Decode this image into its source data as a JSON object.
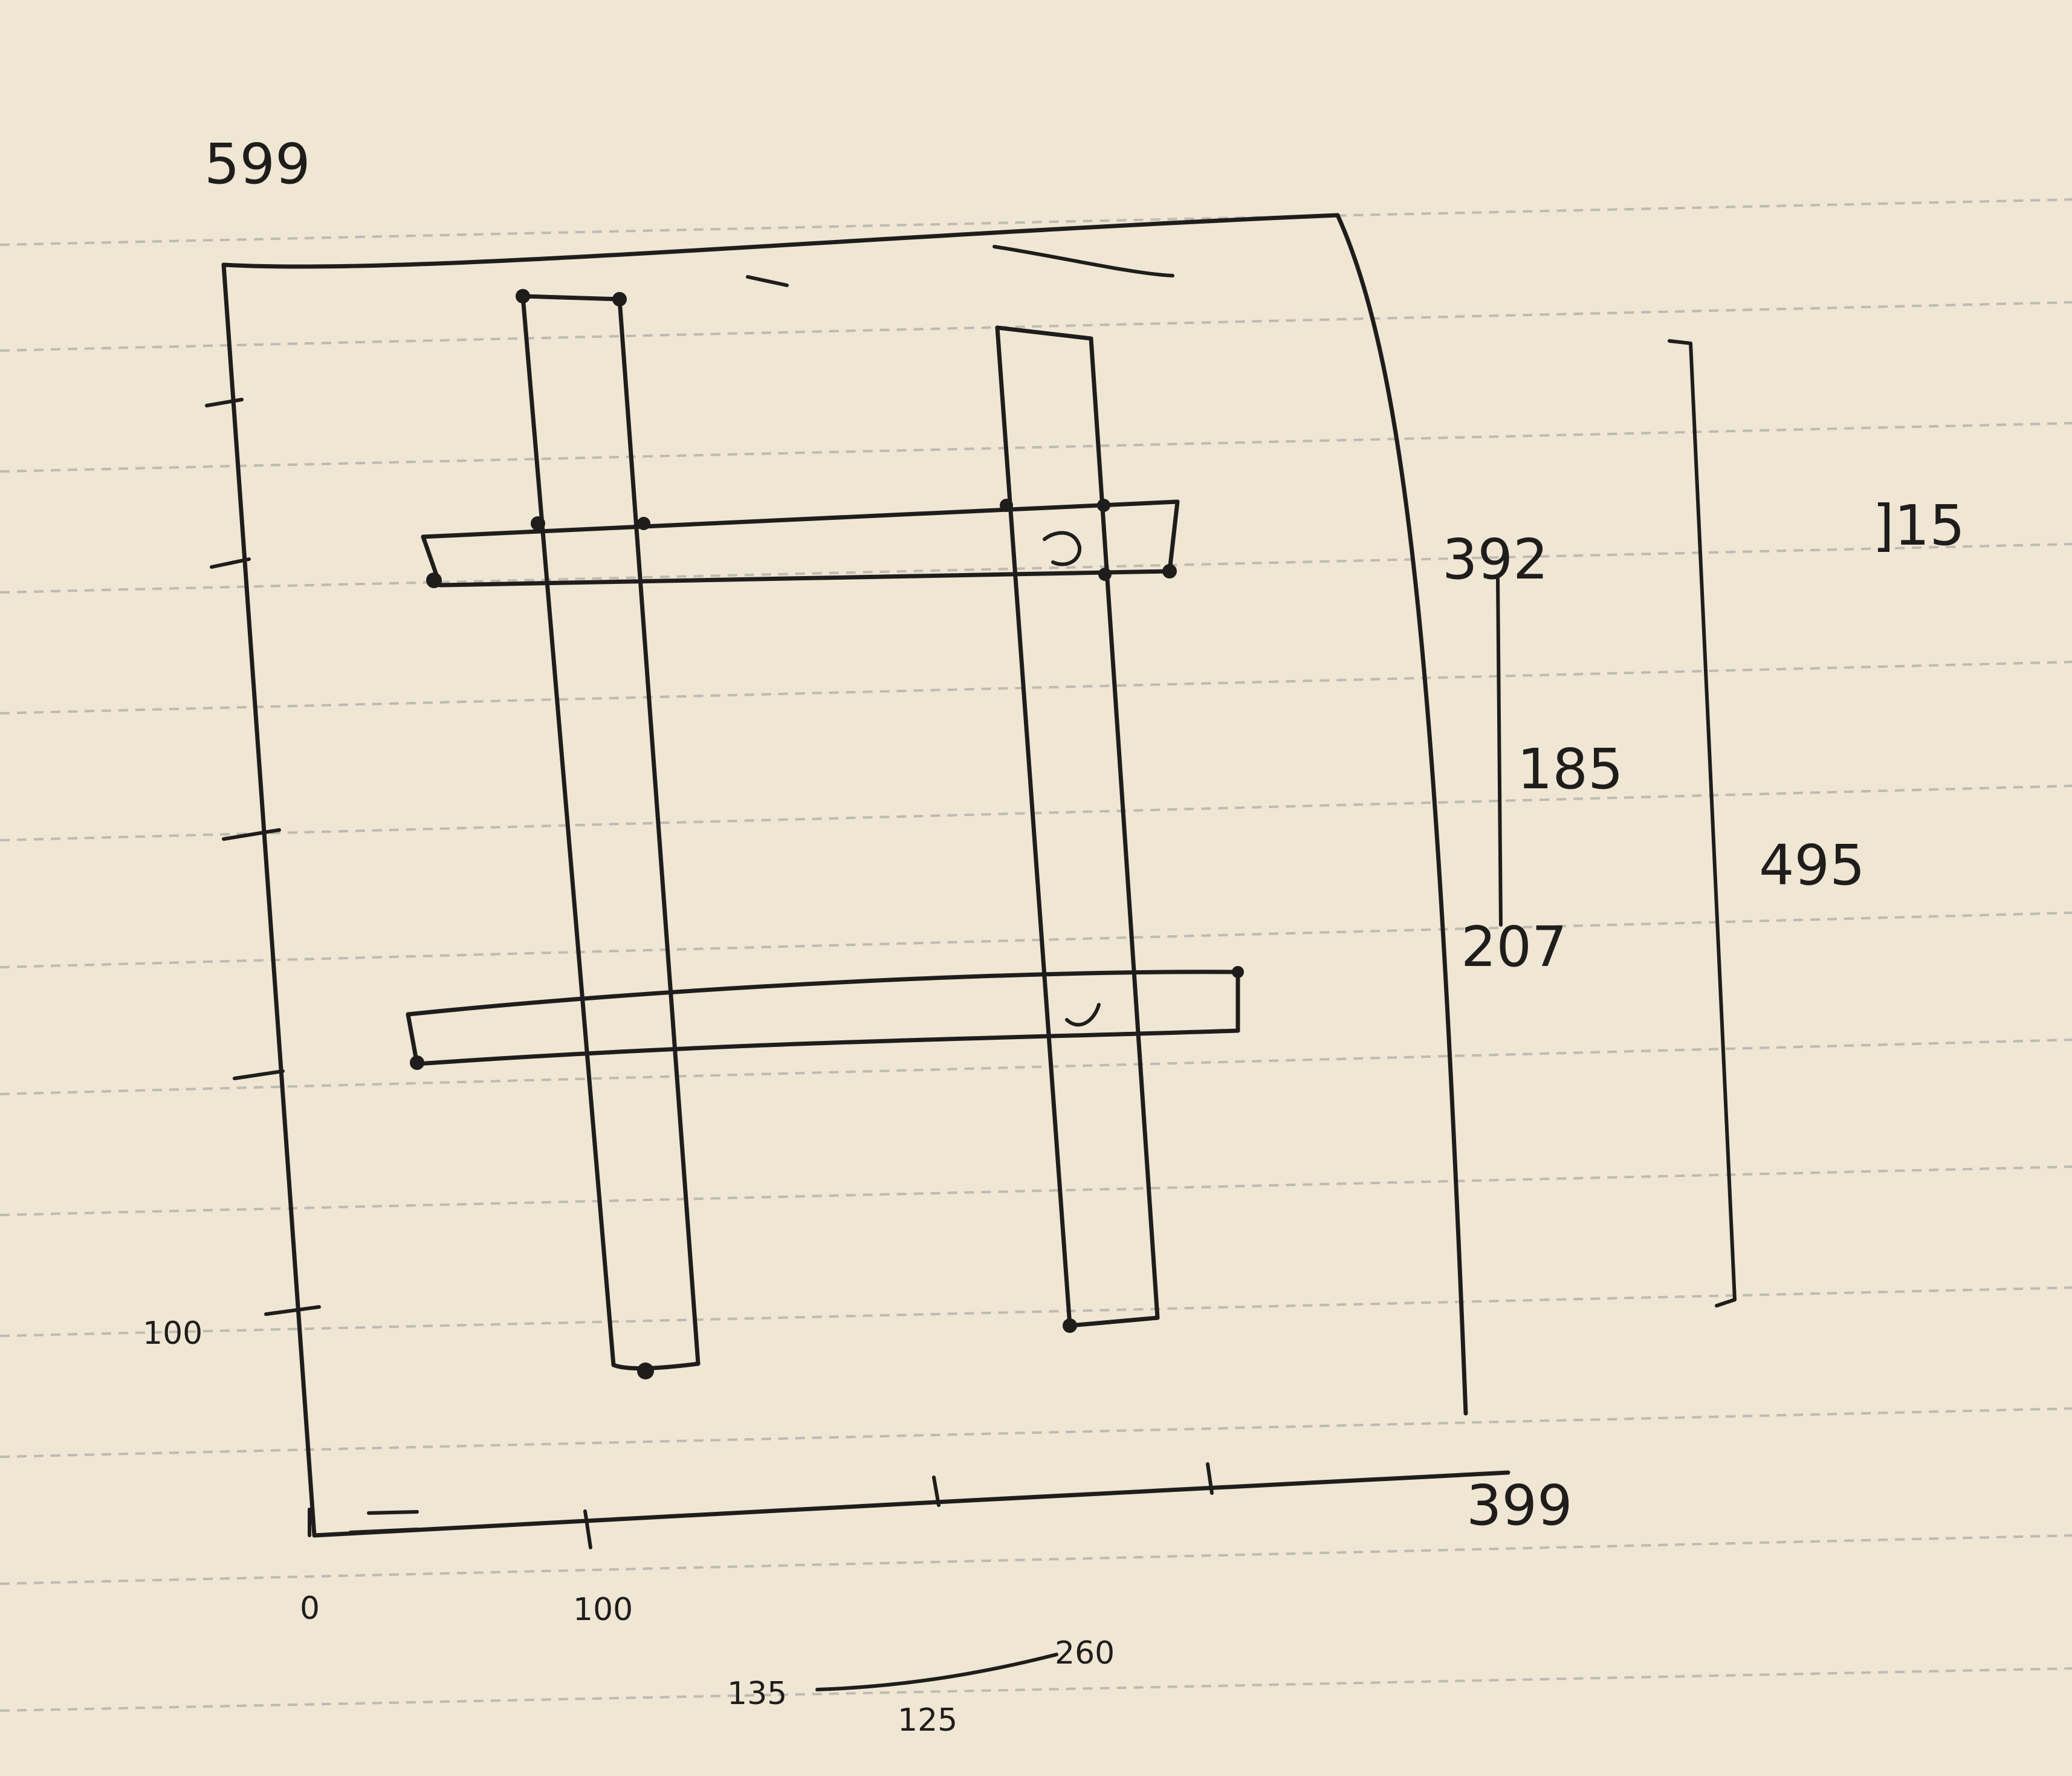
{
  "sketch": {
    "labels": {
      "top_left": "599",
      "left_axis": "100",
      "right_upper": "392",
      "right_mid": "185",
      "right_lower": "207",
      "right_span": "495",
      "far_right": "]15",
      "bottom_zero": "0",
      "bottom_hundred": "100",
      "bottom_right": "399",
      "bottom_left": "135",
      "bottom_center": "125",
      "bottom_right_note": "260"
    }
  }
}
